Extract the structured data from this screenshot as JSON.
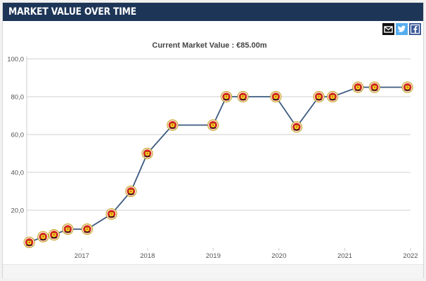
{
  "header": {
    "title": "MARKET VALUE OVER TIME"
  },
  "share": {
    "items": [
      {
        "name": "email-share-icon",
        "color": "#111111"
      },
      {
        "name": "twitter-share-icon",
        "color": "#55acee"
      },
      {
        "name": "facebook-share-icon",
        "color": "#3b5998"
      }
    ]
  },
  "chart_data": {
    "type": "line",
    "title": "Current Market Value : €85.00m",
    "xlabel": "",
    "ylabel": "",
    "ylim": [
      0,
      100
    ],
    "xlim": [
      "2016-03-01",
      "2022-01-01"
    ],
    "yticks": [
      "20,0",
      "40,0",
      "60,0",
      "80,0",
      "100,0"
    ],
    "xticks": [
      "2017",
      "2018",
      "2019",
      "2020",
      "2021",
      "2022"
    ],
    "grid": true,
    "legend": "none",
    "line_color": "#3d5a80",
    "marker": "club-crest-icon",
    "series": [
      {
        "points": [
          {
            "x": "2016-03-15",
            "y": 3
          },
          {
            "x": "2016-05-31",
            "y": 6
          },
          {
            "x": "2016-07-31",
            "y": 7
          },
          {
            "x": "2016-10-15",
            "y": 10
          },
          {
            "x": "2017-01-31",
            "y": 10
          },
          {
            "x": "2017-06-15",
            "y": 18
          },
          {
            "x": "2017-10-01",
            "y": 30
          },
          {
            "x": "2017-12-31",
            "y": 50
          },
          {
            "x": "2018-05-20",
            "y": 65
          },
          {
            "x": "2018-12-31",
            "y": 65
          },
          {
            "x": "2019-03-15",
            "y": 80
          },
          {
            "x": "2019-06-15",
            "y": 80
          },
          {
            "x": "2019-12-15",
            "y": 80
          },
          {
            "x": "2020-04-08",
            "y": 64
          },
          {
            "x": "2020-08-10",
            "y": 80
          },
          {
            "x": "2020-10-25",
            "y": 80
          },
          {
            "x": "2021-03-15",
            "y": 85
          },
          {
            "x": "2021-06-15",
            "y": 85
          },
          {
            "x": "2021-12-15",
            "y": 85
          }
        ]
      }
    ]
  }
}
